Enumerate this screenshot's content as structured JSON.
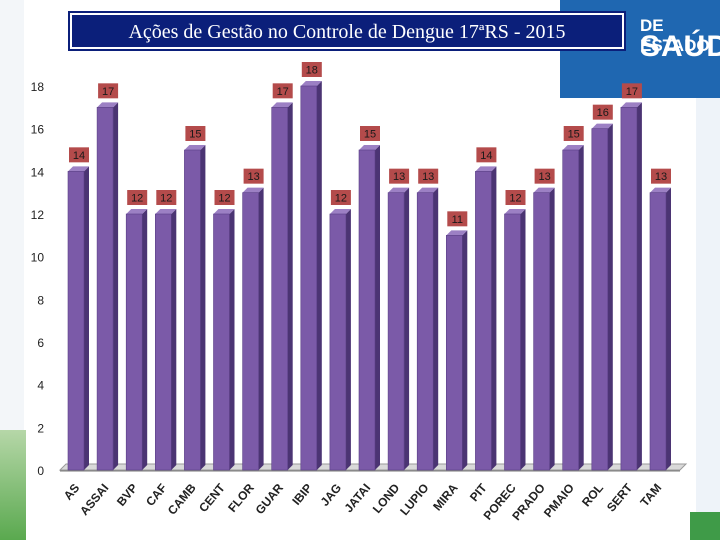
{
  "header": {
    "title": "Ações de Gestão no Controle de Dengue 17ªRS - 2015",
    "brand_line1": "DE ESTADO",
    "brand_line2": "SAÚDE"
  },
  "colors": {
    "bar_front": "#7b5aa8",
    "bar_side": "#4b3473",
    "bar_top": "#9c80c4",
    "label_bg": "#b44b4b",
    "label_text": "#1a1a1a",
    "axis_text": "#222222",
    "title_bg": "#0b1f7a"
  },
  "chart_data": {
    "type": "bar",
    "title": "Ações de Gestão no Controle de Dengue 17ªRS - 2015",
    "xlabel": "",
    "ylabel": "",
    "ylim": [
      0,
      18
    ],
    "yticks": [
      0,
      2,
      4,
      6,
      8,
      10,
      12,
      14,
      16,
      18
    ],
    "grid": false,
    "categories": [
      "AS",
      "ASSAI",
      "BVP",
      "CAF",
      "CAMB",
      "CENT",
      "FLOR",
      "GUAR",
      "IBIP",
      "JAG",
      "JATAI",
      "LOND",
      "LUPIO",
      "MIRA",
      "PIT",
      "POREC",
      "PRADO",
      "PMAIO",
      "ROL",
      "SERT",
      "TAM"
    ],
    "values": [
      14,
      17,
      12,
      12,
      15,
      12,
      13,
      17,
      18,
      12,
      15,
      13,
      13,
      11,
      14,
      12,
      13,
      15,
      16,
      17,
      13
    ]
  }
}
